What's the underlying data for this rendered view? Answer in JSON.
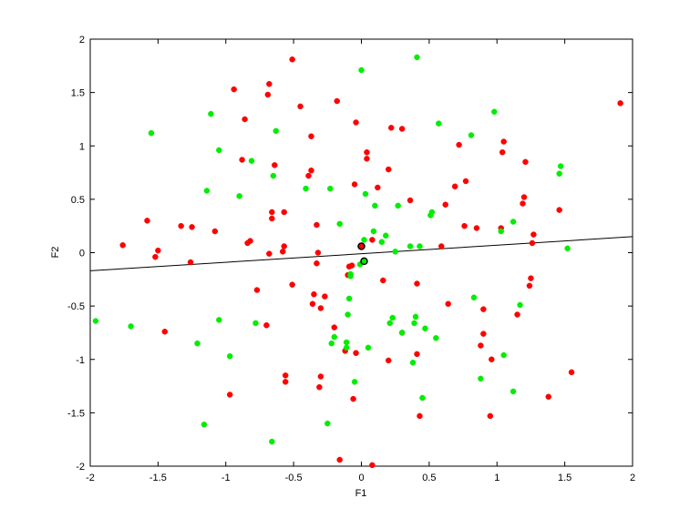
{
  "chart_data": {
    "type": "scatter",
    "xlabel": "F1",
    "ylabel": "F2",
    "xlim": [
      -2,
      2
    ],
    "ylim": [
      -2,
      2
    ],
    "xticks": [
      -2,
      -1.5,
      -1,
      -0.5,
      0,
      0.5,
      1,
      1.5,
      2
    ],
    "yticks": [
      -2,
      -1.5,
      -1,
      -0.5,
      0,
      0.5,
      1,
      1.5,
      2
    ],
    "series": [
      {
        "color": "#ff0000",
        "x": [
          1.91,
          -0.51,
          -0.94,
          -0.68,
          -0.69,
          -0.45,
          -0.18,
          -0.86,
          -0.04,
          0.22,
          0.3,
          -0.37,
          1.05,
          0.72,
          0.04,
          1.04,
          0.04,
          -0.88,
          -0.64,
          1.21,
          -0.37,
          -0.39,
          0.2,
          0.77,
          0.69,
          -0.05,
          0.12,
          1.2,
          1.19,
          0.36,
          0.62,
          -0.66,
          -0.57,
          -0.66,
          -0.33,
          -1.58,
          -1.33,
          -1.25,
          -1.08,
          -0.82,
          -0.84,
          -1.76,
          -1.5,
          -1.52,
          -1.26,
          -0.57,
          -0.58,
          -0.68,
          -0.32,
          0.08,
          0.59,
          0.76,
          0.85,
          1.03,
          1.27,
          1.26,
          1.46,
          -0.33,
          -0.07,
          -0.09,
          -0.1,
          0.16,
          1.25,
          1.24,
          -0.51,
          -0.77,
          -0.35,
          -0.27,
          -0.36,
          -0.3,
          0.41,
          0.64,
          0.9,
          1.15,
          -0.7,
          -1.45,
          -0.2,
          0.3,
          0.9,
          0.88,
          -0.12,
          -0.04,
          0.2,
          0.41,
          0.96,
          -0.56,
          -0.56,
          -0.3,
          -0.31,
          -0.97,
          -0.06,
          1.38,
          1.55,
          0.43,
          0.95,
          -0.16,
          0.08
        ],
        "y": [
          1.4,
          1.81,
          1.53,
          1.58,
          1.48,
          1.37,
          1.42,
          1.25,
          1.22,
          1.17,
          1.16,
          1.09,
          1.04,
          1.01,
          0.94,
          0.94,
          0.88,
          0.87,
          0.82,
          0.85,
          0.77,
          0.72,
          0.78,
          0.67,
          0.62,
          0.64,
          0.61,
          0.52,
          0.46,
          0.49,
          0.45,
          0.38,
          0.38,
          0.32,
          0.26,
          0.3,
          0.25,
          0.24,
          0.2,
          0.11,
          0.09,
          0.07,
          0.02,
          -0.04,
          -0.09,
          0.06,
          0.01,
          -0.01,
          0.0,
          0.12,
          0.06,
          0.25,
          0.23,
          0.23,
          0.17,
          0.09,
          0.4,
          -0.1,
          -0.12,
          -0.13,
          -0.21,
          -0.26,
          -0.24,
          -0.31,
          -0.3,
          -0.35,
          -0.39,
          -0.41,
          -0.48,
          -0.52,
          -0.29,
          -0.48,
          -0.53,
          -0.58,
          -0.68,
          -0.74,
          -0.7,
          -0.75,
          -0.76,
          -0.87,
          -0.92,
          -0.94,
          -1.01,
          -0.95,
          -1.0,
          -1.15,
          -1.21,
          -1.16,
          -1.26,
          -1.33,
          -1.37,
          -1.35,
          -1.12,
          -1.53,
          -1.53,
          -1.94,
          -1.99
        ]
      },
      {
        "color": "#00ee00",
        "x": [
          0.41,
          0.0,
          -1.11,
          0.98,
          -1.55,
          -0.63,
          0.57,
          0.81,
          -1.05,
          -0.81,
          1.46,
          1.47,
          -1.14,
          -0.65,
          -0.41,
          -0.23,
          -0.9,
          0.03,
          0.1,
          0.27,
          0.52,
          0.51,
          1.12,
          1.03,
          -0.16,
          0.09,
          0.18,
          0.15,
          0.36,
          0.43,
          0.25,
          1.52,
          0.02,
          -0.01,
          -0.08,
          -0.08,
          0.83,
          1.17,
          -0.09,
          -0.1,
          0.23,
          0.4,
          -1.96,
          -1.7,
          -1.05,
          -0.78,
          0.21,
          0.39,
          0.3,
          0.47,
          0.55,
          -0.2,
          -0.22,
          -0.11,
          -0.11,
          0.05,
          -1.21,
          -0.97,
          1.05,
          0.38,
          -0.05,
          0.88,
          1.12,
          0.45,
          -0.25,
          -1.16,
          -0.66
        ],
        "y": [
          1.83,
          1.71,
          1.3,
          1.32,
          1.12,
          1.14,
          1.21,
          1.1,
          0.96,
          0.86,
          0.74,
          0.81,
          0.58,
          0.72,
          0.6,
          0.6,
          0.53,
          0.55,
          0.44,
          0.44,
          0.38,
          0.35,
          0.29,
          0.2,
          0.27,
          0.2,
          0.16,
          0.1,
          0.06,
          0.06,
          0.01,
          0.04,
          0.12,
          -0.11,
          -0.22,
          -0.2,
          -0.42,
          -0.49,
          -0.43,
          -0.58,
          -0.61,
          -0.6,
          -0.64,
          -0.69,
          -0.63,
          -0.66,
          -0.66,
          -0.66,
          -0.75,
          -0.71,
          -0.8,
          -0.79,
          -0.85,
          -0.84,
          -0.89,
          -0.89,
          -0.85,
          -0.97,
          -0.96,
          -1.03,
          -1.21,
          -1.18,
          -1.3,
          -1.36,
          -1.6,
          -1.61,
          -1.77
        ]
      },
      {
        "color": "#ff0000",
        "edgecolor": "#000000",
        "x": [
          0.0
        ],
        "y": [
          0.06
        ]
      },
      {
        "color": "#00ee00",
        "edgecolor": "#000000",
        "x": [
          0.02
        ],
        "y": [
          -0.08
        ]
      }
    ],
    "line": {
      "color": "#000000",
      "x": [
        -2,
        2
      ],
      "y": [
        -0.17,
        0.15
      ]
    }
  }
}
